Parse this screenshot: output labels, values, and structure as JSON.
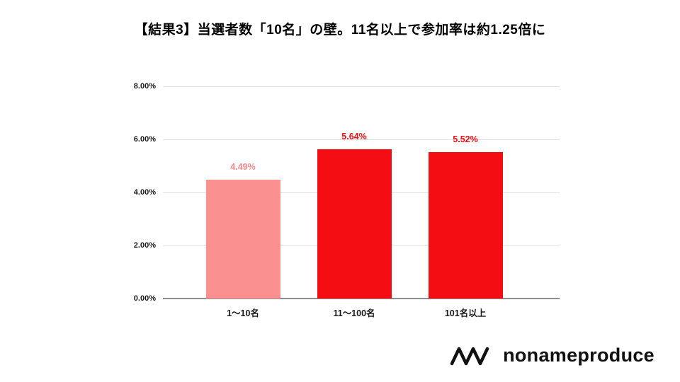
{
  "title": "【結果3】当選者数「10名」の壁。11名以上で参加率は約1.25倍に",
  "logo": {
    "text": "nonameproduce"
  },
  "chart_data": {
    "type": "bar",
    "title": "【結果3】当選者数「10名」の壁。11名以上で参加率は約1.25倍に",
    "categories": [
      "1〜10名",
      "11〜100名",
      "101名以上"
    ],
    "values": [
      4.49,
      5.64,
      5.52
    ],
    "value_labels": [
      "4.49%",
      "5.64%",
      "5.52%"
    ],
    "bar_colors": [
      "#fa9090",
      "#f40d12",
      "#f40d12"
    ],
    "label_colors": [
      "#fa8a8a",
      "#f40d12",
      "#f40d12"
    ],
    "xlabel": "",
    "ylabel": "",
    "ylim": [
      0,
      8
    ],
    "yticks": [
      "0.00%",
      "2.00%",
      "4.00%",
      "6.00%",
      "8.00%"
    ],
    "grid": true,
    "legend": false,
    "colors": {
      "gridline": "#e2e2e2",
      "axis_line": "#8f8f8f",
      "tick_text": "#1a1a1a"
    }
  }
}
